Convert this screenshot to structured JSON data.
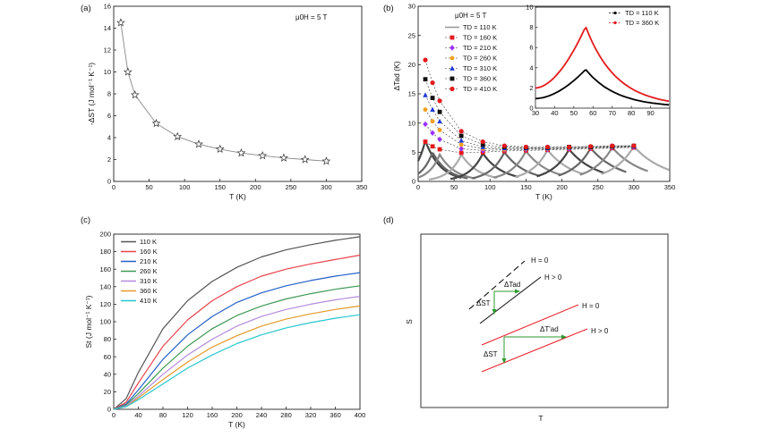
{
  "panels": {
    "a": "(a)",
    "b": "(b)",
    "c": "(c)",
    "d": "(d)"
  },
  "chart_data": [
    {
      "id": "a",
      "type": "scatter",
      "title": "",
      "annotation": "μ0H = 5 T",
      "xlabel": "T (K)",
      "ylabel": "-ΔST (J mol⁻¹ K⁻¹)",
      "xlim": [
        0,
        350
      ],
      "ylim": [
        0,
        16
      ],
      "xticks": [
        0,
        50,
        100,
        150,
        200,
        250,
        300,
        350
      ],
      "yticks": [
        0,
        2,
        4,
        6,
        8,
        10,
        12,
        14,
        16
      ],
      "x": [
        10,
        20,
        30,
        60,
        90,
        120,
        150,
        180,
        210,
        240,
        270,
        300
      ],
      "y": [
        14.5,
        10.0,
        7.9,
        5.3,
        4.1,
        3.4,
        2.95,
        2.6,
        2.35,
        2.15,
        2.0,
        1.85
      ],
      "marker": "star",
      "grid": false
    },
    {
      "id": "b",
      "type": "line",
      "title": "",
      "annotation": "μ0H = 5 T",
      "xlabel": "T (K)",
      "ylabel": "ΔTad (K)",
      "xlim": [
        0,
        350
      ],
      "ylim": [
        0,
        30
      ],
      "xticks": [
        0,
        50,
        100,
        150,
        200,
        250,
        300,
        350
      ],
      "yticks": [
        0,
        5,
        10,
        15,
        20,
        25,
        30
      ],
      "legend_position": "top-center",
      "x": [
        10,
        20,
        30,
        60,
        90,
        120,
        150,
        180,
        210,
        240,
        270,
        300
      ],
      "series": [
        {
          "name": "TD = 110 K",
          "color": "#9a9a9a",
          "marker": "none",
          "y": [
            5.5,
            5.0,
            4.5,
            4.2,
            4.5,
            4.8,
            5.0,
            5.2,
            5.3,
            5.5,
            5.6,
            5.7
          ]
        },
        {
          "name": "TD = 160 K",
          "color": "#e41a1c",
          "marker": "square",
          "y": [
            6.8,
            6.0,
            5.5,
            4.9,
            5.0,
            5.2,
            5.3,
            5.4,
            5.5,
            5.6,
            5.7,
            5.8
          ]
        },
        {
          "name": "TD = 210 K",
          "color": "#9b30ff",
          "marker": "diamond",
          "y": [
            9.8,
            8.3,
            7.2,
            5.6,
            5.3,
            5.4,
            5.5,
            5.5,
            5.6,
            5.7,
            5.8,
            5.9
          ]
        },
        {
          "name": "TD = 260 K",
          "color": "#f0a020",
          "marker": "pentagon",
          "y": [
            12.3,
            10.3,
            8.8,
            6.3,
            5.6,
            5.5,
            5.6,
            5.6,
            5.7,
            5.8,
            5.9,
            6.0
          ]
        },
        {
          "name": "TD = 310 K",
          "color": "#1f3bd8",
          "marker": "triangle",
          "y": [
            14.8,
            12.3,
            10.3,
            7.0,
            5.9,
            5.7,
            5.7,
            5.7,
            5.8,
            5.9,
            6.0,
            6.0
          ]
        },
        {
          "name": "TD = 360 K",
          "color": "#111111",
          "marker": "square",
          "y": [
            17.5,
            14.3,
            11.9,
            7.8,
            6.3,
            5.9,
            5.8,
            5.8,
            5.9,
            5.9,
            6.0,
            6.1
          ]
        },
        {
          "name": "TD = 410 K",
          "color": "#e41a1c",
          "marker": "circle",
          "y": [
            20.8,
            16.9,
            13.8,
            8.6,
            6.8,
            6.1,
            5.9,
            5.9,
            5.9,
            6.0,
            6.1,
            6.1
          ]
        }
      ],
      "peaks_background": {
        "color": "#555555",
        "centers": [
          10,
          20,
          30,
          60,
          90,
          120,
          150,
          180,
          210,
          240,
          270,
          300
        ],
        "heights": [
          7.0,
          5.0,
          4.6,
          4.6,
          4.8,
          5.0,
          5.2,
          5.4,
          5.5,
          5.7,
          5.8,
          6.0
        ]
      },
      "inset": {
        "type": "line",
        "xlim": [
          30,
          100
        ],
        "ylim": [
          0,
          10
        ],
        "xticks": [
          30,
          40,
          50,
          60,
          70,
          80,
          90
        ],
        "yticks": [
          0,
          2,
          4,
          6,
          8,
          10
        ],
        "legend_position": "top-right",
        "peak_x": 56,
        "series": [
          {
            "name": "TD = 110 K",
            "color": "#000000",
            "peak": 3.8
          },
          {
            "name": "TD = 360 K",
            "color": "#e41a1c",
            "peak": 8.0
          }
        ]
      }
    },
    {
      "id": "c",
      "type": "line",
      "title": "",
      "xlabel": "T (K)",
      "ylabel": "St (J mol⁻¹ K⁻¹)",
      "xlim": [
        0,
        400
      ],
      "ylim": [
        0,
        200
      ],
      "xticks": [
        0,
        40,
        80,
        120,
        160,
        200,
        240,
        280,
        320,
        360,
        400
      ],
      "yticks": [
        0,
        20,
        40,
        60,
        80,
        100,
        120,
        140,
        160,
        180,
        200
      ],
      "legend_position": "top-left",
      "x": [
        0,
        20,
        40,
        80,
        120,
        160,
        200,
        240,
        280,
        320,
        360,
        400
      ],
      "series": [
        {
          "name": "110 K",
          "color": "#555555",
          "y": [
            0,
            12,
            42,
            92,
            124,
            146,
            162,
            174,
            182,
            188,
            193,
            197
          ]
        },
        {
          "name": "160 K",
          "color": "#e8434a",
          "y": [
            0,
            8,
            30,
            72,
            102,
            124,
            140,
            152,
            160,
            166,
            171,
            176
          ]
        },
        {
          "name": "210 K",
          "color": "#2460c8",
          "y": [
            0,
            6,
            22,
            57,
            85,
            106,
            122,
            133,
            141,
            147,
            152,
            156
          ]
        },
        {
          "name": "260 K",
          "color": "#3f9a55",
          "y": [
            0,
            5,
            18,
            47,
            72,
            92,
            107,
            118,
            126,
            132,
            137,
            141
          ]
        },
        {
          "name": "310 K",
          "color": "#b48ade",
          "y": [
            0,
            4,
            15,
            40,
            62,
            80,
            95,
            106,
            114,
            120,
            125,
            129
          ]
        },
        {
          "name": "360 K",
          "color": "#e39a2a",
          "y": [
            0,
            3,
            13,
            34,
            54,
            71,
            84,
            95,
            103,
            109,
            114,
            118
          ]
        },
        {
          "name": "410 K",
          "color": "#27c6cf",
          "y": [
            0,
            3,
            11,
            29,
            47,
            62,
            75,
            85,
            93,
            99,
            104,
            108
          ]
        }
      ],
      "grid": false
    }
  ],
  "diagram_d": {
    "xlabel": "T",
    "ylabel": "S",
    "black_h0": "H = 0",
    "black_h5": "H > 0",
    "black_dtad": "ΔTad",
    "black_dst": "ΔST",
    "red_h0": "H = 0",
    "red_h5": "H > 0",
    "red_dtad": "ΔT'ad",
    "red_dst": "ΔST",
    "colors": {
      "black": "#111111",
      "red": "#e8232a",
      "green": "#2e9a2e"
    }
  }
}
